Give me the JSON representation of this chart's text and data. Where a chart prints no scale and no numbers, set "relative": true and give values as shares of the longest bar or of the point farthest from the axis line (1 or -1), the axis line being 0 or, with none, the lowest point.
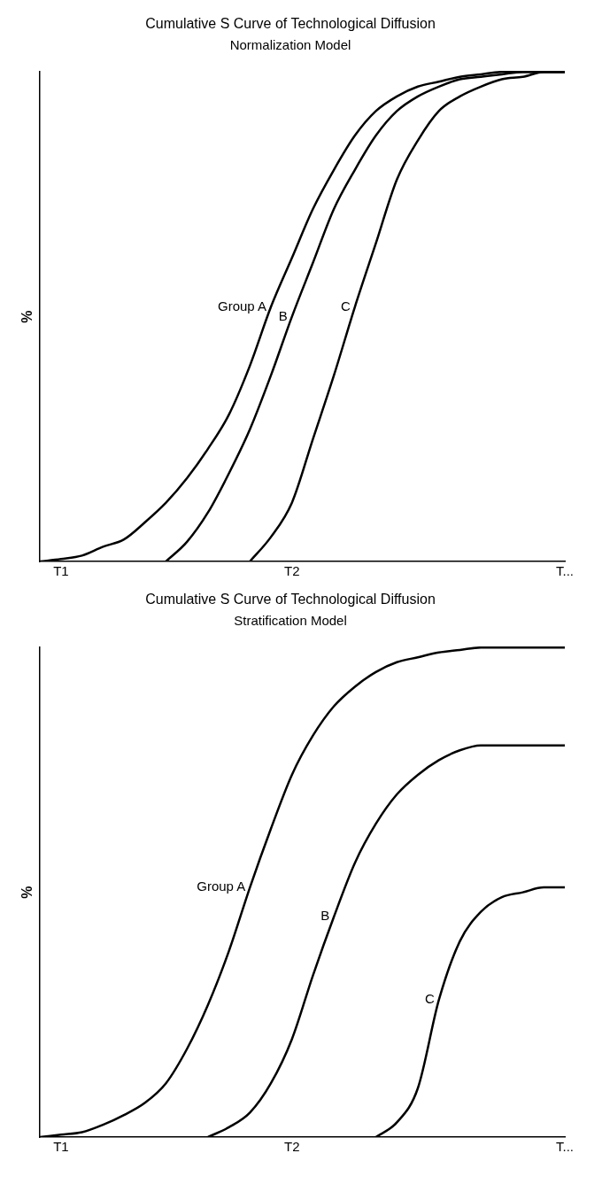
{
  "chart_data": [
    {
      "type": "line",
      "title": "Cumulative S Curve of Technological Diffusion",
      "subtitle": "Normalization Model",
      "ylabel": "%",
      "relative": true,
      "legend": false,
      "grid": false,
      "marker": "none",
      "categories": [
        null,
        "T1",
        null,
        null,
        null,
        null,
        null,
        null,
        null,
        null,
        null,
        null,
        "T2",
        null,
        null,
        null,
        null,
        null,
        null,
        null,
        null,
        null,
        null,
        null,
        null,
        "T..."
      ],
      "series": [
        {
          "name": "Group A",
          "color": "#000000",
          "values": [
            0,
            0.005,
            0.012,
            0.03,
            0.045,
            0.08,
            0.12,
            0.17,
            0.23,
            0.3,
            0.4,
            0.52,
            0.62,
            0.72,
            0.8,
            0.87,
            0.92,
            0.95,
            0.97,
            0.98,
            0.99,
            0.995,
            1,
            1,
            1,
            1
          ]
        },
        {
          "name": "B",
          "color": "#000000",
          "values": [
            null,
            null,
            null,
            null,
            null,
            null,
            0,
            0.04,
            0.1,
            0.18,
            0.27,
            0.38,
            0.5,
            0.61,
            0.72,
            0.8,
            0.87,
            0.92,
            0.95,
            0.97,
            0.985,
            0.99,
            0.995,
            1,
            1,
            1
          ]
        },
        {
          "name": "C",
          "color": "#000000",
          "values": [
            null,
            null,
            null,
            null,
            null,
            null,
            null,
            null,
            null,
            null,
            0,
            0.05,
            0.12,
            0.25,
            0.38,
            0.52,
            0.65,
            0.78,
            0.86,
            0.92,
            0.95,
            0.97,
            0.985,
            0.99,
            1,
            1
          ]
        }
      ]
    },
    {
      "type": "line",
      "title": "Cumulative S Curve of Technological Diffusion",
      "subtitle": "Stratification Model",
      "ylabel": "%",
      "relative": true,
      "legend": false,
      "grid": false,
      "marker": "none",
      "categories": [
        null,
        "T1",
        null,
        null,
        null,
        null,
        null,
        null,
        null,
        null,
        null,
        null,
        "T2",
        null,
        null,
        null,
        null,
        null,
        null,
        null,
        null,
        null,
        null,
        null,
        null,
        "T..."
      ],
      "series": [
        {
          "name": "Group A",
          "color": "#000000",
          "values": [
            0,
            0.005,
            0.01,
            0.025,
            0.045,
            0.07,
            0.11,
            0.18,
            0.27,
            0.38,
            0.51,
            0.63,
            0.74,
            0.82,
            0.88,
            0.92,
            0.95,
            0.97,
            0.98,
            0.99,
            0.995,
            1,
            1,
            1,
            1,
            1
          ]
        },
        {
          "name": "B",
          "color": "#000000",
          "values": [
            null,
            null,
            null,
            null,
            null,
            null,
            null,
            null,
            0,
            0.02,
            0.05,
            0.11,
            0.2,
            0.33,
            0.45,
            0.56,
            0.64,
            0.7,
            0.74,
            0.77,
            0.79,
            0.8,
            0.8,
            0.8,
            0.8,
            0.8
          ]
        },
        {
          "name": "C",
          "color": "#000000",
          "values": [
            null,
            null,
            null,
            null,
            null,
            null,
            null,
            null,
            null,
            null,
            null,
            null,
            null,
            null,
            null,
            null,
            0,
            0.03,
            0.1,
            0.28,
            0.4,
            0.46,
            0.49,
            0.5,
            0.51,
            0.51
          ]
        }
      ]
    }
  ]
}
